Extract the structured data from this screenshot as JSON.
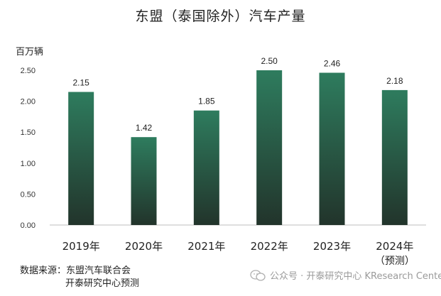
{
  "chart_data": {
    "type": "bar",
    "title": "东盟（泰国除外）汽车产量",
    "ylabel": "百万辆",
    "categories": [
      "2019年",
      "2020年",
      "2021年",
      "2022年",
      "2023年",
      "2024年"
    ],
    "category_notes": [
      "",
      "",
      "",
      "",
      "",
      "（预测）"
    ],
    "values": [
      2.15,
      1.42,
      1.85,
      2.5,
      2.46,
      2.18
    ],
    "data_labels": [
      "2.15",
      "1.42",
      "1.85",
      "2.50",
      "2.46",
      "2.18"
    ],
    "ylim": [
      0,
      2.5
    ],
    "yticks": [
      "0.00",
      "0.50",
      "1.00",
      "1.50",
      "2.00",
      "2.50"
    ],
    "grid": false,
    "bar_colors": {
      "top": "#2e7c5e",
      "bottom": "#22342b"
    }
  },
  "footer": {
    "source_line1": "数据来源：东盟汽车联合会",
    "source_line2": "开泰研究中心预测",
    "watermark": "公众号 · 开泰研究中心 KResearch Center"
  }
}
